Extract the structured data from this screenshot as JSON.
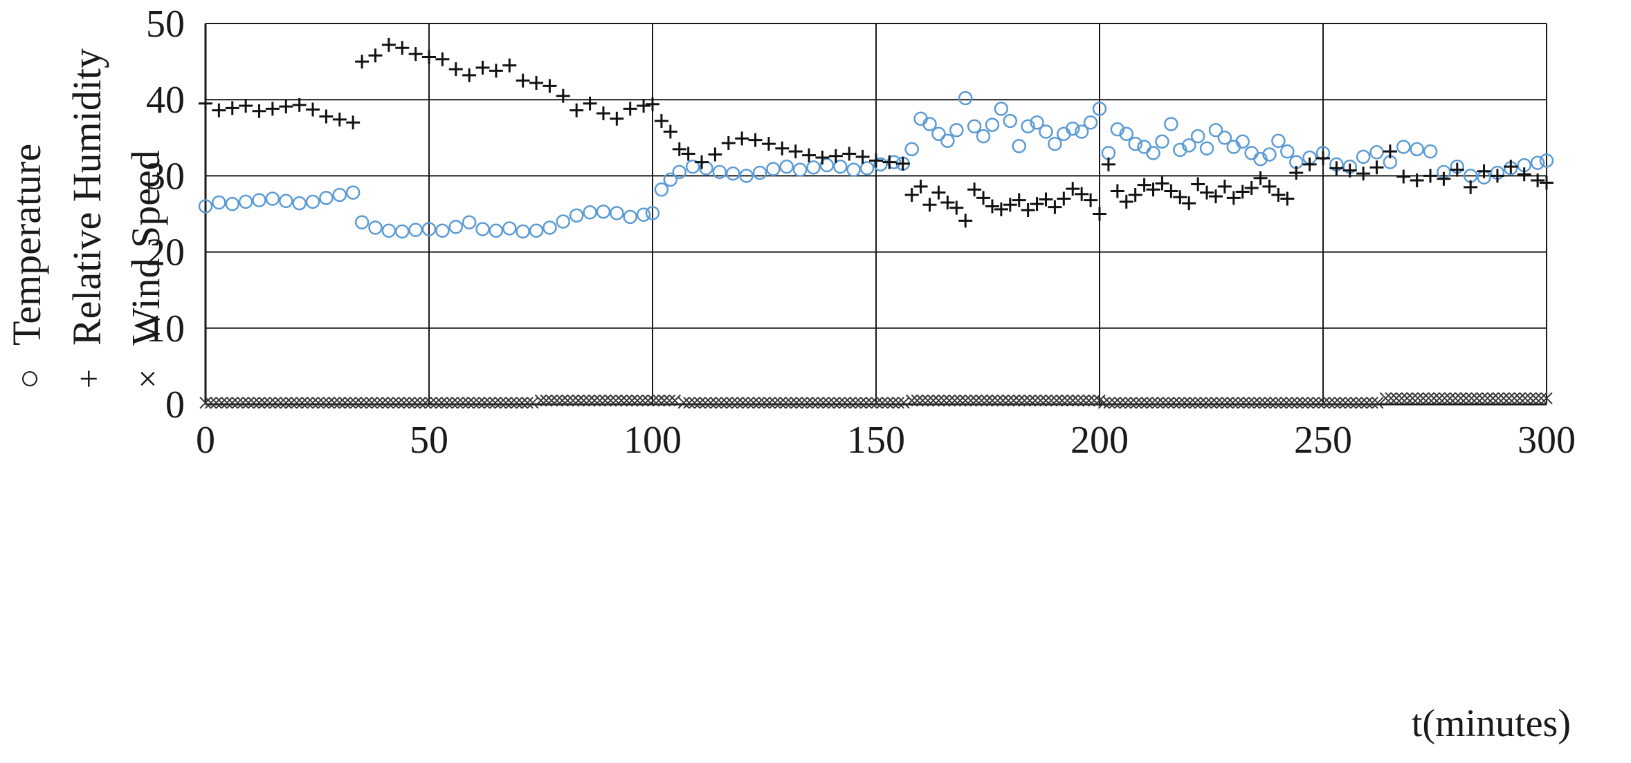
{
  "chart_data": {
    "type": "scatter",
    "xlabel": "t(minutes)",
    "ylabel": "",
    "xlim": [
      0,
      300
    ],
    "ylim": [
      0,
      50
    ],
    "x_ticks": [
      "0",
      "50",
      "100",
      "150",
      "200",
      "250",
      "300"
    ],
    "y_ticks": [
      "0",
      "10",
      "20",
      "30",
      "40",
      "50"
    ],
    "grid": true,
    "legend_position": "left, rotated vertical",
    "legend": [
      {
        "symbol": "○",
        "name": "Temperature"
      },
      {
        "symbol": "+",
        "name": "Relative Humidity"
      },
      {
        "symbol": "×",
        "name": "Wind Speed"
      }
    ],
    "series": [
      {
        "name": "Temperature",
        "marker": "circle",
        "color": "#5b9bd5",
        "points": [
          [
            0,
            26.0
          ],
          [
            3,
            26.5
          ],
          [
            6,
            26.3
          ],
          [
            9,
            26.6
          ],
          [
            12,
            26.8
          ],
          [
            15,
            27.0
          ],
          [
            18,
            26.7
          ],
          [
            21,
            26.4
          ],
          [
            24,
            26.6
          ],
          [
            27,
            27.1
          ],
          [
            30,
            27.5
          ],
          [
            33,
            27.8
          ],
          [
            35,
            23.9
          ],
          [
            38,
            23.2
          ],
          [
            41,
            22.8
          ],
          [
            44,
            22.7
          ],
          [
            47,
            22.9
          ],
          [
            50,
            23.0
          ],
          [
            53,
            22.8
          ],
          [
            56,
            23.3
          ],
          [
            59,
            23.9
          ],
          [
            62,
            23.0
          ],
          [
            65,
            22.8
          ],
          [
            68,
            23.1
          ],
          [
            71,
            22.7
          ],
          [
            74,
            22.8
          ],
          [
            77,
            23.2
          ],
          [
            80,
            24.0
          ],
          [
            83,
            24.8
          ],
          [
            86,
            25.2
          ],
          [
            89,
            25.3
          ],
          [
            92,
            25.1
          ],
          [
            95,
            24.6
          ],
          [
            98,
            24.9
          ],
          [
            100,
            25.1
          ],
          [
            102,
            28.2
          ],
          [
            104,
            29.5
          ],
          [
            106,
            30.5
          ],
          [
            109,
            31.2
          ],
          [
            112,
            31.0
          ],
          [
            115,
            30.5
          ],
          [
            118,
            30.3
          ],
          [
            121,
            30.0
          ],
          [
            124,
            30.4
          ],
          [
            127,
            30.9
          ],
          [
            130,
            31.2
          ],
          [
            133,
            30.8
          ],
          [
            136,
            31.1
          ],
          [
            139,
            31.4
          ],
          [
            142,
            31.2
          ],
          [
            145,
            30.8
          ],
          [
            148,
            31.0
          ],
          [
            151,
            31.5
          ],
          [
            154,
            31.8
          ],
          [
            156,
            31.6
          ],
          [
            158,
            33.5
          ],
          [
            160,
            37.5
          ],
          [
            162,
            36.8
          ],
          [
            164,
            35.5
          ],
          [
            166,
            34.6
          ],
          [
            168,
            36.0
          ],
          [
            170,
            40.2
          ],
          [
            172,
            36.5
          ],
          [
            174,
            35.2
          ],
          [
            176,
            36.7
          ],
          [
            178,
            38.8
          ],
          [
            180,
            37.2
          ],
          [
            182,
            33.9
          ],
          [
            184,
            36.5
          ],
          [
            186,
            37.0
          ],
          [
            188,
            35.8
          ],
          [
            190,
            34.2
          ],
          [
            192,
            35.5
          ],
          [
            194,
            36.2
          ],
          [
            196,
            35.8
          ],
          [
            198,
            37.0
          ],
          [
            200,
            38.8
          ],
          [
            202,
            33.0
          ],
          [
            204,
            36.1
          ],
          [
            206,
            35.5
          ],
          [
            208,
            34.2
          ],
          [
            210,
            33.8
          ],
          [
            212,
            33.0
          ],
          [
            214,
            34.5
          ],
          [
            216,
            36.8
          ],
          [
            218,
            33.4
          ],
          [
            220,
            34.0
          ],
          [
            222,
            35.2
          ],
          [
            224,
            33.6
          ],
          [
            226,
            36.0
          ],
          [
            228,
            35.0
          ],
          [
            230,
            33.8
          ],
          [
            232,
            34.5
          ],
          [
            234,
            33.0
          ],
          [
            236,
            32.2
          ],
          [
            238,
            32.8
          ],
          [
            240,
            34.6
          ],
          [
            242,
            33.2
          ],
          [
            244,
            31.8
          ],
          [
            247,
            32.4
          ],
          [
            250,
            33.0
          ],
          [
            253,
            31.5
          ],
          [
            256,
            31.2
          ],
          [
            259,
            32.5
          ],
          [
            262,
            33.1
          ],
          [
            265,
            31.8
          ],
          [
            268,
            33.8
          ],
          [
            271,
            33.5
          ],
          [
            274,
            33.2
          ],
          [
            277,
            30.5
          ],
          [
            280,
            31.2
          ],
          [
            283,
            30.0
          ],
          [
            286,
            29.8
          ],
          [
            289,
            30.4
          ],
          [
            292,
            31.0
          ],
          [
            295,
            31.4
          ],
          [
            298,
            31.7
          ],
          [
            300,
            32.0
          ]
        ]
      },
      {
        "name": "Relative Humidity",
        "marker": "plus",
        "color": "#111111",
        "points": [
          [
            0,
            39.5
          ],
          [
            3,
            38.6
          ],
          [
            6,
            38.9
          ],
          [
            9,
            39.2
          ],
          [
            12,
            38.5
          ],
          [
            15,
            38.8
          ],
          [
            18,
            39.1
          ],
          [
            21,
            39.3
          ],
          [
            24,
            38.7
          ],
          [
            27,
            37.8
          ],
          [
            30,
            37.4
          ],
          [
            33,
            37.0
          ],
          [
            35,
            45.0
          ],
          [
            38,
            45.8
          ],
          [
            41,
            47.2
          ],
          [
            44,
            46.8
          ],
          [
            47,
            46.0
          ],
          [
            50,
            45.6
          ],
          [
            53,
            45.3
          ],
          [
            56,
            44.0
          ],
          [
            59,
            43.2
          ],
          [
            62,
            44.2
          ],
          [
            65,
            43.8
          ],
          [
            68,
            44.5
          ],
          [
            71,
            42.5
          ],
          [
            74,
            42.2
          ],
          [
            77,
            41.8
          ],
          [
            80,
            40.5
          ],
          [
            83,
            38.6
          ],
          [
            86,
            39.5
          ],
          [
            89,
            38.2
          ],
          [
            92,
            37.5
          ],
          [
            95,
            38.8
          ],
          [
            98,
            39.2
          ],
          [
            100,
            39.4
          ],
          [
            102,
            37.2
          ],
          [
            104,
            35.8
          ],
          [
            106,
            33.5
          ],
          [
            108,
            32.9
          ],
          [
            111,
            31.8
          ],
          [
            114,
            32.8
          ],
          [
            117,
            34.3
          ],
          [
            120,
            34.9
          ],
          [
            123,
            34.7
          ],
          [
            126,
            34.2
          ],
          [
            129,
            33.6
          ],
          [
            132,
            33.2
          ],
          [
            135,
            32.7
          ],
          [
            138,
            32.4
          ],
          [
            141,
            32.6
          ],
          [
            144,
            32.9
          ],
          [
            147,
            32.5
          ],
          [
            150,
            32.0
          ],
          [
            153,
            31.8
          ],
          [
            156,
            31.6
          ],
          [
            158,
            27.5
          ],
          [
            160,
            28.6
          ],
          [
            162,
            26.2
          ],
          [
            164,
            27.8
          ],
          [
            166,
            26.5
          ],
          [
            168,
            25.8
          ],
          [
            170,
            24.1
          ],
          [
            172,
            28.2
          ],
          [
            174,
            27.1
          ],
          [
            176,
            26.0
          ],
          [
            178,
            25.6
          ],
          [
            180,
            26.2
          ],
          [
            182,
            26.8
          ],
          [
            184,
            25.5
          ],
          [
            186,
            26.3
          ],
          [
            188,
            26.9
          ],
          [
            190,
            25.9
          ],
          [
            192,
            27.0
          ],
          [
            194,
            28.3
          ],
          [
            196,
            27.6
          ],
          [
            198,
            26.8
          ],
          [
            200,
            25.0
          ],
          [
            202,
            31.5
          ],
          [
            204,
            28.0
          ],
          [
            206,
            26.6
          ],
          [
            208,
            27.5
          ],
          [
            210,
            28.8
          ],
          [
            212,
            28.2
          ],
          [
            214,
            29.0
          ],
          [
            216,
            28.0
          ],
          [
            218,
            27.2
          ],
          [
            220,
            26.4
          ],
          [
            222,
            28.9
          ],
          [
            224,
            27.8
          ],
          [
            226,
            27.3
          ],
          [
            228,
            28.6
          ],
          [
            230,
            27.1
          ],
          [
            232,
            27.9
          ],
          [
            234,
            28.4
          ],
          [
            236,
            29.7
          ],
          [
            238,
            28.6
          ],
          [
            240,
            27.5
          ],
          [
            242,
            27.0
          ],
          [
            244,
            30.4
          ],
          [
            247,
            31.5
          ],
          [
            250,
            32.3
          ],
          [
            253,
            31.0
          ],
          [
            256,
            30.7
          ],
          [
            259,
            30.3
          ],
          [
            262,
            31.1
          ],
          [
            265,
            33.2
          ],
          [
            268,
            29.9
          ],
          [
            271,
            29.4
          ],
          [
            274,
            30.0
          ],
          [
            277,
            29.6
          ],
          [
            280,
            30.8
          ],
          [
            283,
            28.5
          ],
          [
            286,
            30.6
          ],
          [
            289,
            30.0
          ],
          [
            292,
            31.2
          ],
          [
            295,
            30.2
          ],
          [
            298,
            29.4
          ],
          [
            300,
            29.1
          ]
        ]
      },
      {
        "name": "Wind Speed",
        "marker": "cross",
        "color": "#333333",
        "segments": [
          {
            "x0": 0,
            "x1": 74,
            "y": 0.2
          },
          {
            "x0": 75,
            "x1": 106,
            "y": 0.5
          },
          {
            "x0": 107,
            "x1": 157,
            "y": 0.2
          },
          {
            "x0": 158,
            "x1": 200,
            "y": 0.5
          },
          {
            "x0": 201,
            "x1": 263,
            "y": 0.2
          },
          {
            "x0": 264,
            "x1": 300,
            "y": 0.8
          }
        ]
      }
    ]
  }
}
